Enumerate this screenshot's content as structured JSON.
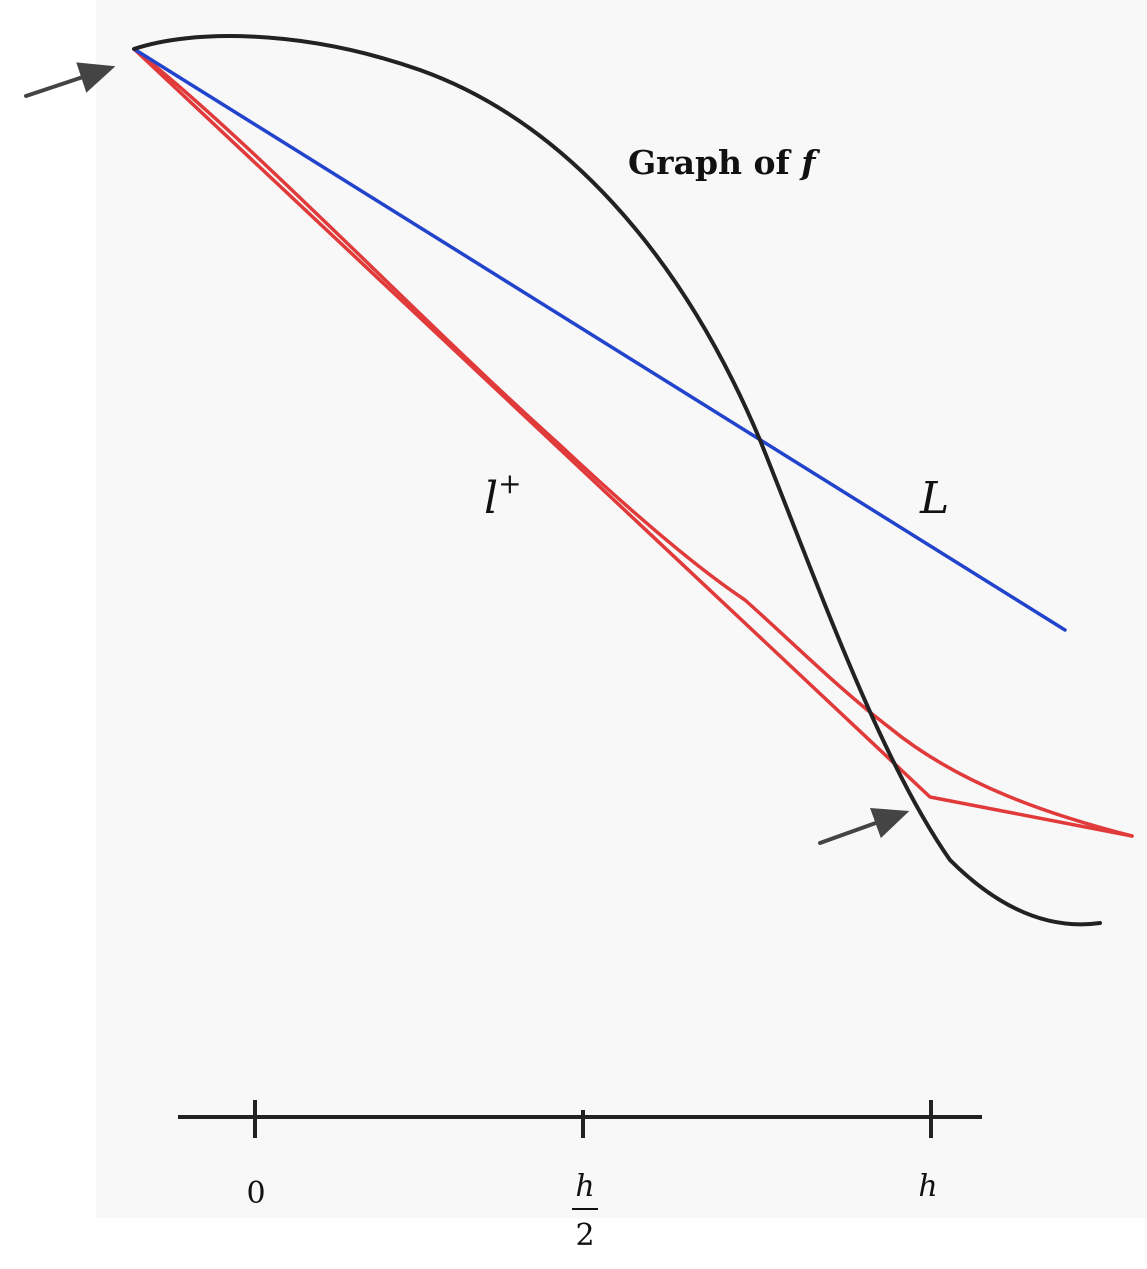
{
  "labels": {
    "graph_title_prefix": "Graph of ",
    "graph_title_symbol": "f",
    "line_l_base": "l",
    "line_l_sup": "+",
    "line_big_l": "L"
  },
  "axis": {
    "ticks": [
      {
        "key": "zero",
        "text": "0"
      },
      {
        "key": "half_h",
        "numerator": "h",
        "denominator": "2"
      },
      {
        "key": "h",
        "text": "h"
      }
    ]
  },
  "colors": {
    "curve": "#222222",
    "secant_line": "#2244cc",
    "red_lines": "#e03a3a",
    "arrows": "#444444",
    "axis": "#222222",
    "panel_background": "#f8f8f9"
  },
  "icons": [
    "arrow-icon",
    "arrow-icon"
  ]
}
